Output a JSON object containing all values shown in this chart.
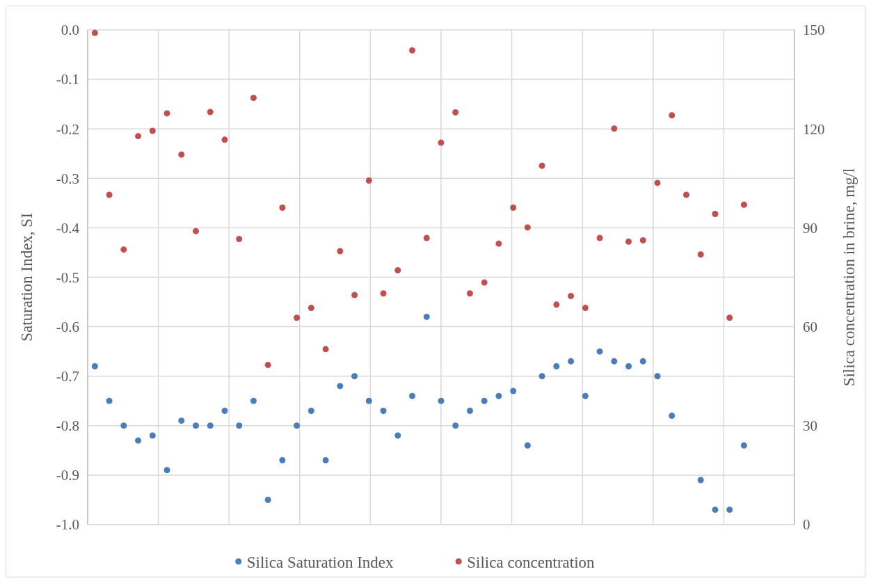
{
  "chart_data": {
    "type": "scatter",
    "ylabel": "Saturation Index, SI",
    "y2label": "Silica concentration in brine, mg/l",
    "categories": [
      null,
      null,
      null,
      null,
      null,
      null,
      null,
      null,
      null,
      null,
      null,
      null,
      null,
      null,
      null,
      null,
      null,
      null,
      null,
      null,
      null,
      null,
      null,
      null,
      null,
      null,
      null,
      null,
      null,
      null,
      null,
      null,
      null,
      null,
      null,
      null,
      null,
      null,
      null,
      null,
      null,
      null,
      null,
      null,
      null,
      null,
      null,
      null,
      null
    ],
    "ylim": [
      -1.0,
      0.0
    ],
    "yticks": [
      {
        "value": -1.0,
        "label": "-1.0"
      },
      {
        "value": -0.9,
        "label": "-0.9"
      },
      {
        "value": -0.8,
        "label": "-0.8"
      },
      {
        "value": -0.7,
        "label": "-0.7"
      },
      {
        "value": -0.6,
        "label": "-0.6"
      },
      {
        "value": -0.5,
        "label": "-0.5"
      },
      {
        "value": -0.4,
        "label": "-0.4"
      },
      {
        "value": -0.3,
        "label": "-0.3"
      },
      {
        "value": -0.2,
        "label": "-0.2"
      },
      {
        "value": -0.1,
        "label": "-0.1"
      },
      {
        "value": 0.0,
        "label": "0.0"
      }
    ],
    "y2lim": [
      0,
      150
    ],
    "y2ticks": [
      0,
      30,
      60,
      90,
      120,
      150
    ],
    "grid": true,
    "legend": "bottom",
    "marker": "circle",
    "series": [
      {
        "name": "Silica Saturation Index",
        "color": "#4a7ebb",
        "values": [
          -0.68,
          -0.75,
          -0.8,
          -0.83,
          -0.82,
          -0.89,
          -0.79,
          -0.8,
          -0.8,
          -0.77,
          -0.8,
          -0.75,
          -0.95,
          -0.87,
          -0.8,
          -0.77,
          -0.87,
          -0.72,
          -0.7,
          -0.75,
          -0.77,
          -0.82,
          -0.74,
          -0.58,
          -0.75,
          -0.8,
          -0.77,
          -0.75,
          -0.74,
          -0.73,
          -0.84,
          -0.7,
          -0.68,
          -0.67,
          -0.74,
          -0.65,
          -0.67,
          -0.68,
          -0.67,
          -0.7,
          -0.78,
          null,
          -0.91,
          -0.97,
          -0.97,
          -0.84,
          null,
          null,
          null
        ]
      },
      {
        "name": "Silica concentration",
        "color": "#c0504d",
        "axis": "y2",
        "values": [
          149.1,
          100.0,
          83.4,
          117.8,
          119.4,
          124.7,
          112.2,
          89.0,
          125.1,
          116.7,
          86.6,
          129.4,
          48.4,
          96.1,
          62.7,
          65.7,
          53.2,
          82.9,
          69.6,
          104.3,
          70.1,
          77.1,
          143.8,
          86.9,
          115.8,
          125.0,
          70.1,
          73.4,
          85.2,
          96.1,
          90.1,
          108.8,
          66.7,
          69.3,
          65.7,
          86.9,
          120.1,
          85.8,
          86.2,
          103.6,
          124.1,
          100.0,
          81.9,
          94.2,
          62.7,
          97.0,
          null,
          null,
          null
        ]
      }
    ]
  }
}
